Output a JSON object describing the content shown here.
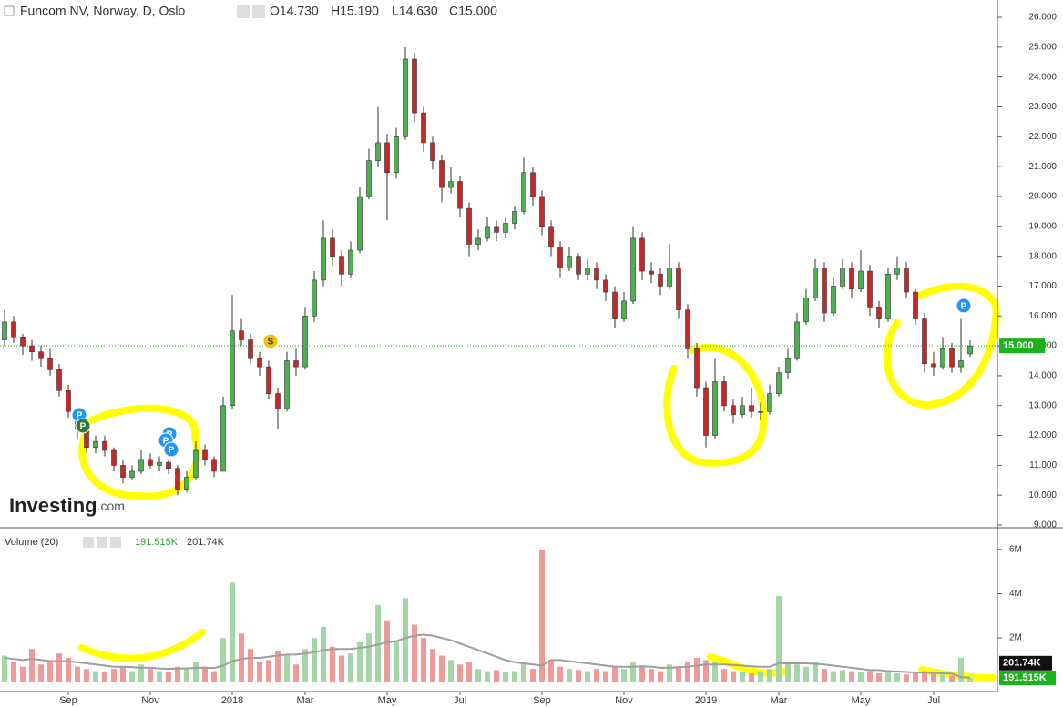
{
  "chart_data": [
    {
      "type": "candlestick",
      "title": "Funcom NV, Norway, D, Oslo",
      "ohlc": [
        "O14.730",
        "H15.190",
        "L14.630",
        "C15.000"
      ],
      "logo_main": "Investing",
      "logo_suffix": ".com",
      "events": [
        "P",
        "P",
        "P",
        "P",
        "P",
        "S",
        "P"
      ],
      "up_color": "#4caf50",
      "down_color": "#c62828",
      "grid": false,
      "open": [
        15.2,
        15.8,
        15.3,
        15.0,
        14.8,
        14.6,
        14.2,
        13.5,
        12.8,
        12.2,
        11.6,
        11.8,
        11.5,
        11.0,
        10.6,
        10.8,
        11.2,
        11.0,
        11.1,
        10.9,
        10.2,
        10.6,
        11.5,
        11.2,
        10.8,
        13.0,
        15.5,
        15.2,
        14.6,
        14.3,
        13.4,
        12.9,
        14.5,
        14.3,
        16.0,
        17.2,
        18.6,
        18.0,
        17.4,
        18.2,
        20.0,
        21.2,
        21.8,
        20.8,
        22.0,
        24.6,
        22.8,
        21.8,
        21.2,
        20.3,
        20.5,
        19.6,
        18.4,
        18.6,
        19.0,
        18.8,
        19.1,
        19.5,
        20.8,
        20.0,
        19.0,
        18.3,
        17.6,
        18.0,
        17.4,
        17.6,
        17.2,
        16.8,
        15.9,
        16.5,
        18.6,
        17.5,
        17.4,
        17.0,
        17.6,
        16.2,
        14.9,
        13.6,
        12.0,
        13.8,
        13.0,
        12.7,
        13.0,
        12.8,
        12.8,
        13.4,
        14.1,
        14.6,
        15.8,
        16.6,
        17.6,
        16.1,
        17.0,
        17.6,
        16.9,
        17.5,
        16.3,
        15.9,
        17.4,
        17.6,
        16.8,
        15.9,
        14.4,
        14.3,
        14.9,
        14.3,
        14.73
      ],
      "high": [
        16.2,
        16.0,
        15.4,
        15.2,
        15.0,
        14.9,
        14.4,
        13.7,
        12.9,
        12.4,
        12.0,
        12.0,
        11.6,
        11.2,
        11.0,
        11.5,
        11.4,
        11.3,
        11.2,
        11.0,
        10.8,
        11.8,
        11.7,
        11.3,
        13.3,
        16.7,
        15.9,
        15.4,
        14.8,
        14.5,
        13.6,
        14.8,
        14.9,
        16.3,
        17.5,
        19.2,
        18.9,
        18.2,
        18.5,
        20.3,
        21.6,
        23.0,
        22.1,
        22.3,
        25.0,
        24.8,
        23.0,
        22.0,
        21.4,
        21.0,
        20.7,
        19.8,
        18.9,
        19.3,
        19.2,
        19.3,
        19.7,
        21.3,
        21.0,
        20.2,
        19.2,
        18.5,
        18.3,
        18.1,
        17.9,
        17.8,
        17.4,
        17.0,
        16.8,
        19.0,
        18.8,
        17.8,
        17.6,
        18.4,
        17.8,
        16.4,
        15.1,
        13.8,
        14.6,
        14.0,
        13.2,
        13.3,
        13.6,
        13.1,
        13.7,
        14.3,
        14.9,
        16.1,
        16.9,
        17.9,
        17.8,
        17.3,
        17.9,
        17.8,
        18.2,
        17.7,
        16.5,
        17.6,
        18.0,
        17.8,
        16.9,
        16.1,
        14.8,
        15.3,
        15.1,
        15.9,
        15.19
      ],
      "low": [
        15.0,
        15.1,
        14.7,
        14.5,
        14.3,
        14.0,
        13.3,
        12.6,
        11.9,
        11.4,
        11.4,
        11.3,
        10.8,
        10.4,
        10.5,
        10.7,
        10.9,
        10.8,
        10.7,
        10.0,
        10.1,
        10.5,
        11.0,
        10.6,
        10.8,
        12.9,
        15.0,
        14.4,
        14.0,
        13.2,
        12.2,
        12.8,
        14.0,
        14.2,
        15.8,
        17.0,
        17.7,
        17.0,
        17.3,
        18.1,
        19.9,
        21.0,
        19.2,
        20.6,
        21.9,
        22.5,
        21.5,
        20.9,
        19.8,
        20.1,
        19.3,
        18.0,
        18.2,
        18.5,
        18.5,
        18.6,
        18.9,
        19.4,
        19.7,
        18.7,
        18.0,
        17.3,
        17.5,
        17.2,
        17.2,
        16.9,
        16.5,
        15.6,
        15.8,
        16.4,
        17.2,
        17.1,
        16.7,
        16.9,
        15.9,
        14.6,
        13.3,
        11.6,
        11.9,
        12.8,
        12.4,
        12.6,
        12.6,
        12.5,
        12.7,
        13.3,
        13.9,
        14.5,
        15.7,
        16.5,
        15.8,
        16.0,
        16.9,
        16.6,
        16.8,
        16.0,
        15.6,
        15.8,
        17.2,
        16.6,
        15.7,
        14.1,
        14.0,
        14.2,
        14.1,
        14.1,
        14.63
      ],
      "close": [
        15.8,
        15.3,
        15.0,
        14.8,
        14.6,
        14.2,
        13.5,
        12.8,
        12.2,
        11.6,
        11.8,
        11.5,
        11.0,
        10.6,
        10.8,
        11.2,
        11.0,
        11.1,
        10.9,
        10.2,
        10.6,
        11.5,
        11.2,
        10.8,
        13.0,
        15.5,
        15.2,
        14.6,
        14.3,
        13.4,
        12.9,
        14.5,
        14.3,
        16.0,
        17.2,
        18.6,
        18.0,
        17.4,
        18.2,
        20.0,
        21.2,
        21.8,
        20.8,
        22.0,
        24.6,
        22.8,
        21.8,
        21.2,
        20.3,
        20.5,
        19.6,
        18.4,
        18.6,
        19.0,
        18.8,
        19.1,
        19.5,
        20.8,
        20.0,
        19.0,
        18.3,
        17.6,
        18.0,
        17.4,
        17.6,
        17.2,
        16.8,
        15.9,
        16.5,
        18.6,
        17.5,
        17.4,
        17.0,
        17.6,
        16.2,
        14.9,
        13.6,
        12.0,
        13.8,
        13.0,
        12.7,
        13.0,
        12.8,
        12.8,
        13.4,
        14.1,
        14.6,
        15.8,
        16.6,
        17.6,
        16.1,
        17.0,
        17.6,
        16.9,
        17.5,
        16.3,
        15.9,
        17.4,
        17.6,
        16.8,
        15.9,
        14.4,
        14.3,
        14.9,
        14.3,
        14.5,
        15.0
      ],
      "last_price": {
        "value": 15,
        "label": "15.000"
      },
      "last_price_color": "#1bb31b",
      "ylim": [
        8.91,
        26.58
      ],
      "yticks": [
        {
          "value": 9,
          "label": "9.000"
        },
        {
          "value": 10,
          "label": "10.000"
        },
        {
          "value": 11,
          "label": "11.000"
        },
        {
          "value": 12,
          "label": "12.000"
        },
        {
          "value": 13,
          "label": "13.000"
        },
        {
          "value": 14,
          "label": "14.000"
        },
        {
          "value": 15,
          "label": "15.000"
        },
        {
          "value": 16,
          "label": "16.000"
        },
        {
          "value": 17,
          "label": "17.000"
        },
        {
          "value": 18,
          "label": "18.000"
        },
        {
          "value": 19,
          "label": "19.000"
        },
        {
          "value": 20,
          "label": "20.000"
        },
        {
          "value": 21,
          "label": "21.000"
        },
        {
          "value": 22,
          "label": "22.000"
        },
        {
          "value": 23,
          "label": "23.000"
        },
        {
          "value": 24,
          "label": "24.000"
        },
        {
          "value": 25,
          "label": "25.000"
        },
        {
          "value": 26,
          "label": "26.000"
        }
      ]
    },
    {
      "type": "bar",
      "title": "Volume (20)",
      "categories": [
        null,
        null,
        null,
        null,
        null,
        null,
        null,
        "Sep",
        null,
        null,
        null,
        null,
        null,
        null,
        null,
        null,
        "Nov",
        null,
        null,
        null,
        null,
        null,
        null,
        null,
        null,
        "2018",
        null,
        null,
        null,
        null,
        null,
        null,
        null,
        "Mar",
        null,
        null,
        null,
        null,
        null,
        null,
        null,
        null,
        "May",
        null,
        null,
        null,
        null,
        null,
        null,
        null,
        "Jul",
        null,
        null,
        null,
        null,
        null,
        null,
        null,
        null,
        "Sep",
        null,
        null,
        null,
        null,
        null,
        null,
        null,
        null,
        "Nov",
        null,
        null,
        null,
        null,
        null,
        null,
        null,
        null,
        "2019",
        null,
        null,
        null,
        null,
        null,
        null,
        null,
        "Mar",
        null,
        null,
        null,
        null,
        null,
        null,
        null,
        null,
        "May",
        null,
        null,
        null,
        null,
        null,
        null,
        null,
        "Jul",
        null,
        null,
        null,
        null
      ],
      "values": [
        1200000,
        900000,
        700000,
        1500000,
        800000,
        900000,
        1300000,
        1100000,
        700000,
        600000,
        500000,
        450000,
        600000,
        700000,
        500000,
        800000,
        600000,
        500000,
        450000,
        700000,
        600000,
        900000,
        700000,
        500000,
        2000000,
        4500000,
        2200000,
        1500000,
        900000,
        1000000,
        1400000,
        1200000,
        800000,
        1500000,
        2000000,
        2500000,
        1600000,
        1200000,
        1300000,
        1800000,
        2200000,
        3500000,
        2800000,
        1900000,
        3800000,
        2600000,
        2000000,
        1500000,
        1200000,
        1000000,
        800000,
        900000,
        600000,
        500000,
        550000,
        450000,
        500000,
        900000,
        600000,
        6000000,
        1000000,
        700000,
        600000,
        550000,
        500000,
        600000,
        500000,
        700000,
        600000,
        900000,
        700000,
        600000,
        500000,
        800000,
        700000,
        900000,
        1100000,
        1000000,
        900000,
        600000,
        500000,
        450000,
        400000,
        500000,
        600000,
        3900000,
        900000,
        800000,
        700000,
        900000,
        600000,
        500000,
        550000,
        500000,
        450000,
        500000,
        400000,
        450000,
        400000,
        350000,
        400000,
        500000,
        450000,
        350000,
        300000,
        1100000,
        191515
      ],
      "average_values": [
        1100000,
        1050000,
        1000000,
        1050000,
        1000000,
        950000,
        950000,
        950000,
        900000,
        850000,
        800000,
        750000,
        700000,
        700000,
        680000,
        650000,
        650000,
        620000,
        600000,
        620000,
        620000,
        650000,
        650000,
        640000,
        750000,
        950000,
        1050000,
        1100000,
        1100000,
        1150000,
        1200000,
        1250000,
        1250000,
        1300000,
        1350000,
        1450000,
        1500000,
        1500000,
        1500000,
        1550000,
        1600000,
        1700000,
        1800000,
        1850000,
        2000000,
        2100000,
        2150000,
        2100000,
        2000000,
        1900000,
        1750000,
        1600000,
        1450000,
        1300000,
        1150000,
        1000000,
        900000,
        850000,
        800000,
        750000,
        1000000,
        1000000,
        950000,
        900000,
        850000,
        800000,
        750000,
        700000,
        700000,
        700000,
        720000,
        700000,
        650000,
        650000,
        680000,
        700000,
        750000,
        800000,
        800000,
        800000,
        780000,
        750000,
        720000,
        700000,
        700000,
        850000,
        850000,
        850000,
        850000,
        830000,
        800000,
        750000,
        700000,
        650000,
        600000,
        550000,
        550000,
        500000,
        480000,
        460000,
        440000,
        430000,
        420000,
        400000,
        390000,
        230000,
        201740
      ],
      "up_color": "#a5d6a7",
      "down_color": "#ef9a9a",
      "average_color": "#9e9e9e",
      "last_volume": {
        "value": 191515,
        "label": "191.515K"
      },
      "average_volume": {
        "value": 201740,
        "label": "201.74K"
      },
      "ylim": [
        -300000,
        6900000
      ],
      "yticks": [
        {
          "value": 2000000,
          "label": "2M"
        },
        {
          "value": 4000000,
          "label": "4M"
        },
        {
          "value": 6000000,
          "label": "6M"
        }
      ]
    }
  ]
}
